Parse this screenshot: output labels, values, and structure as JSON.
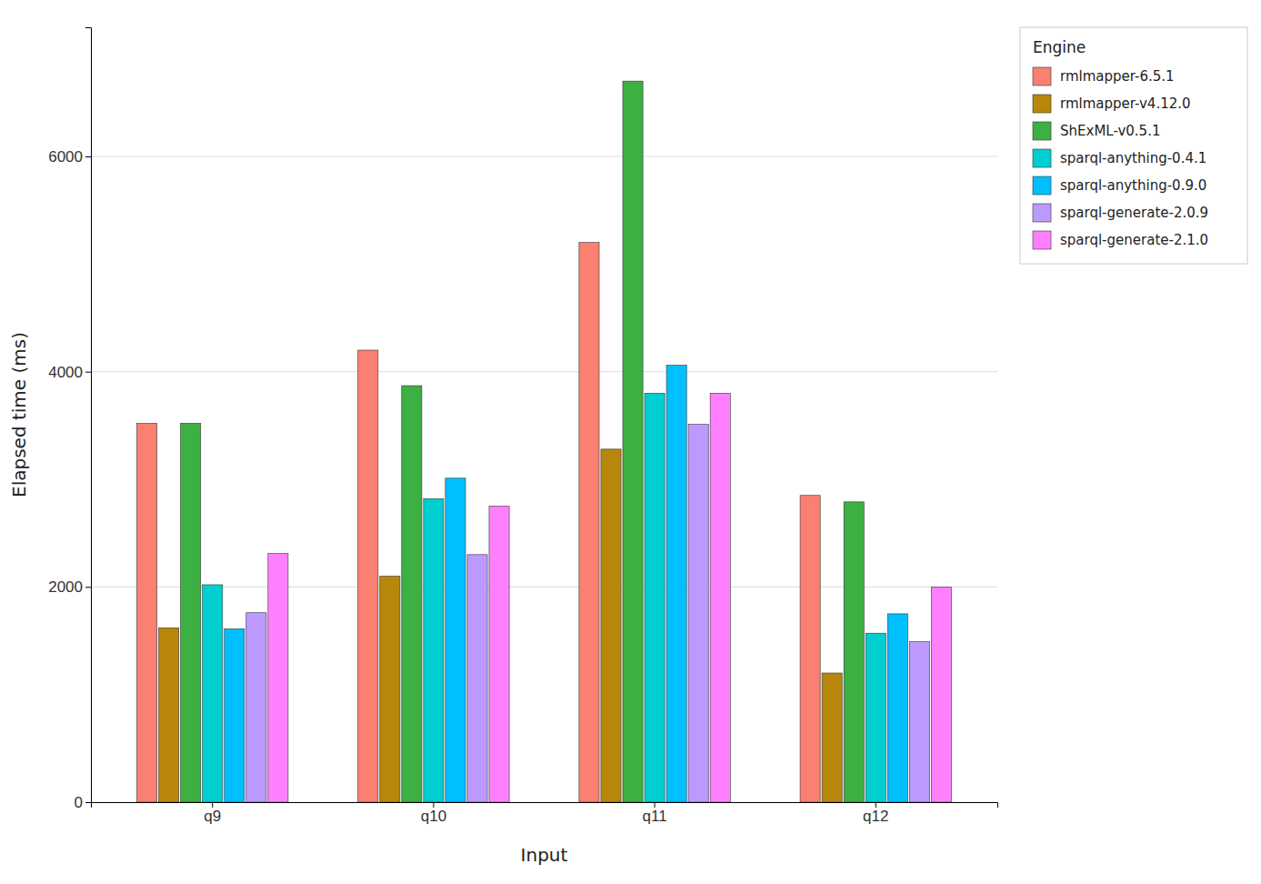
{
  "chart_data": {
    "type": "bar",
    "xlabel": "Input",
    "ylabel": "Elapsed time (ms)",
    "legend_title": "Engine",
    "categories": [
      "q9",
      "q10",
      "q11",
      "q12"
    ],
    "series": [
      {
        "name": "rmlmapper-6.5.1",
        "color": "#FA8072",
        "values": [
          3520,
          4200,
          5200,
          2850
        ]
      },
      {
        "name": "rmlmapper-v4.12.0",
        "color": "#B8860B",
        "values": [
          1620,
          2100,
          3280,
          1200
        ]
      },
      {
        "name": "ShExML-v0.5.1",
        "color": "#3CB043",
        "values": [
          3520,
          3870,
          6700,
          2790
        ]
      },
      {
        "name": "sparql-anything-0.4.1",
        "color": "#00CED1",
        "values": [
          2020,
          2820,
          3800,
          1570
        ]
      },
      {
        "name": "sparql-anything-0.9.0",
        "color": "#00BFFF",
        "values": [
          1610,
          3010,
          4060,
          1750
        ]
      },
      {
        "name": "sparql-generate-2.0.9",
        "color": "#BB99FF",
        "values": [
          1760,
          2300,
          3510,
          1490
        ]
      },
      {
        "name": "sparql-generate-2.1.0",
        "color": "#FF80FF",
        "values": [
          2310,
          2750,
          3800,
          2000
        ]
      }
    ],
    "ylim": [
      0,
      7200
    ],
    "yticks": [
      0,
      2000,
      4000,
      6000
    ],
    "grid": true,
    "legend": "right"
  }
}
